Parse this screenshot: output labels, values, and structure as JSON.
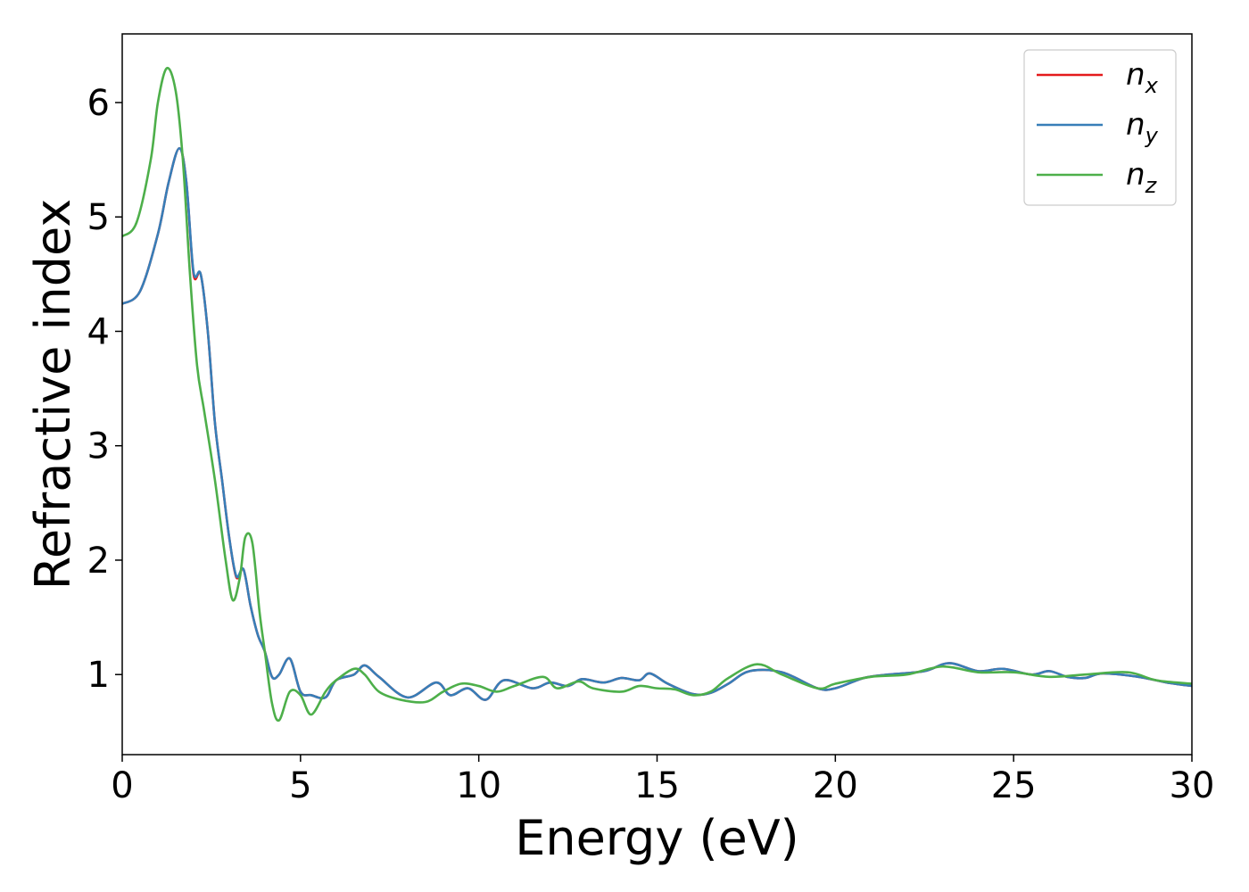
{
  "chart_data": {
    "type": "line",
    "xlabel": "Energy (eV)",
    "ylabel": "Refractive index",
    "xlim": [
      0,
      30
    ],
    "ylim": [
      0.3,
      6.6
    ],
    "xticks": [
      "0",
      "5",
      "10",
      "15",
      "20",
      "25",
      "30"
    ],
    "yticks": [
      "1",
      "2",
      "3",
      "4",
      "5",
      "6"
    ],
    "grid": false,
    "legend_position": "top-right",
    "series": [
      {
        "name": "n",
        "subscript": "x",
        "color": "#e41a1c",
        "x": [
          0,
          0.5,
          1.0,
          1.3,
          1.6,
          1.8,
          2.0,
          2.2,
          2.4,
          2.6,
          2.8,
          3.0,
          3.2,
          3.4,
          3.6,
          3.8,
          4.0,
          4.2,
          4.4,
          4.7,
          5.0,
          5.3,
          5.7,
          6.0,
          6.5,
          6.8,
          7.2,
          8.0,
          8.8,
          9.2,
          9.7,
          10.2,
          10.7,
          11.5,
          12.0,
          12.5,
          12.9,
          13.5,
          14.0,
          14.5,
          14.8,
          15.3,
          16.0,
          16.5,
          17.0,
          17.6,
          18.5,
          19.5,
          20.0,
          20.8,
          21.5,
          22.5,
          23.2,
          24.0,
          24.7,
          25.5,
          26.0,
          26.5,
          27.0,
          27.5,
          28.5,
          29.3,
          30.0
        ],
        "y": [
          4.24,
          4.35,
          4.85,
          5.3,
          5.6,
          5.3,
          4.5,
          4.5,
          4.0,
          3.2,
          2.7,
          2.2,
          1.85,
          1.92,
          1.6,
          1.35,
          1.2,
          0.98,
          1.0,
          1.14,
          0.85,
          0.82,
          0.8,
          0.95,
          1.0,
          1.08,
          0.98,
          0.8,
          0.93,
          0.82,
          0.88,
          0.78,
          0.95,
          0.88,
          0.93,
          0.9,
          0.96,
          0.93,
          0.97,
          0.95,
          1.01,
          0.92,
          0.83,
          0.84,
          0.92,
          1.03,
          1.02,
          0.88,
          0.88,
          0.97,
          1.0,
          1.03,
          1.1,
          1.03,
          1.05,
          1.0,
          1.03,
          0.98,
          0.97,
          1.01,
          0.98,
          0.93,
          0.9
        ]
      },
      {
        "name": "n",
        "subscript": "y",
        "color": "#377eb8",
        "x": [
          0,
          0.5,
          1.0,
          1.3,
          1.6,
          1.8,
          2.0,
          2.2,
          2.4,
          2.6,
          2.8,
          3.0,
          3.2,
          3.4,
          3.6,
          3.8,
          4.0,
          4.2,
          4.4,
          4.7,
          5.0,
          5.3,
          5.7,
          6.0,
          6.5,
          6.8,
          7.2,
          8.0,
          8.8,
          9.2,
          9.7,
          10.2,
          10.7,
          11.5,
          12.0,
          12.5,
          12.9,
          13.5,
          14.0,
          14.5,
          14.8,
          15.3,
          16.0,
          16.5,
          17.0,
          17.6,
          18.5,
          19.5,
          20.0,
          20.8,
          21.5,
          22.5,
          23.2,
          24.0,
          24.7,
          25.5,
          26.0,
          26.5,
          27.0,
          27.5,
          28.5,
          29.3,
          30.0
        ],
        "y": [
          4.24,
          4.35,
          4.85,
          5.3,
          5.6,
          5.3,
          4.52,
          4.5,
          4.0,
          3.2,
          2.7,
          2.2,
          1.86,
          1.92,
          1.6,
          1.35,
          1.2,
          0.98,
          1.0,
          1.14,
          0.85,
          0.82,
          0.8,
          0.95,
          1.0,
          1.08,
          0.98,
          0.8,
          0.93,
          0.82,
          0.88,
          0.78,
          0.95,
          0.88,
          0.93,
          0.9,
          0.96,
          0.93,
          0.97,
          0.95,
          1.01,
          0.92,
          0.83,
          0.84,
          0.92,
          1.03,
          1.02,
          0.88,
          0.88,
          0.97,
          1.0,
          1.03,
          1.1,
          1.03,
          1.05,
          1.0,
          1.03,
          0.98,
          0.97,
          1.01,
          0.98,
          0.93,
          0.9
        ]
      },
      {
        "name": "n",
        "subscript": "z",
        "color": "#4daf4a",
        "x": [
          0,
          0.4,
          0.8,
          1.0,
          1.25,
          1.5,
          1.7,
          1.9,
          2.1,
          2.3,
          2.6,
          2.9,
          3.1,
          3.3,
          3.45,
          3.65,
          3.85,
          4.0,
          4.2,
          4.4,
          4.7,
          5.0,
          5.3,
          5.7,
          6.0,
          6.5,
          6.8,
          7.2,
          7.8,
          8.5,
          9.0,
          9.5,
          10.0,
          10.5,
          11.0,
          11.8,
          12.2,
          12.8,
          13.2,
          14.0,
          14.5,
          15.0,
          15.5,
          16.0,
          16.5,
          17.0,
          17.8,
          18.5,
          19.5,
          20.0,
          21.0,
          22.0,
          23.0,
          24.0,
          25.0,
          26.0,
          27.0,
          28.2,
          29.0,
          30.0
        ],
        "y": [
          4.83,
          4.95,
          5.5,
          6.0,
          6.3,
          6.1,
          5.5,
          4.5,
          3.7,
          3.3,
          2.7,
          2.0,
          1.65,
          1.85,
          2.2,
          2.15,
          1.55,
          1.2,
          0.75,
          0.6,
          0.85,
          0.82,
          0.65,
          0.85,
          0.95,
          1.05,
          1.0,
          0.85,
          0.78,
          0.76,
          0.85,
          0.92,
          0.9,
          0.85,
          0.9,
          0.98,
          0.88,
          0.94,
          0.88,
          0.85,
          0.9,
          0.88,
          0.87,
          0.82,
          0.85,
          0.97,
          1.09,
          1.0,
          0.88,
          0.92,
          0.98,
          1.0,
          1.07,
          1.02,
          1.02,
          0.98,
          1.0,
          1.02,
          0.95,
          0.92
        ]
      }
    ]
  }
}
